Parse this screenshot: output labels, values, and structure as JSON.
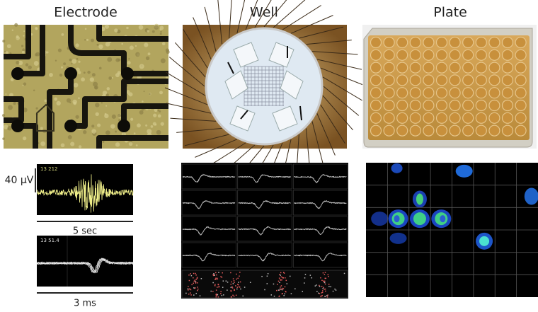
{
  "columns": [
    {
      "title": "Electrode"
    },
    {
      "title": "Well"
    },
    {
      "title": "Plate"
    }
  ],
  "electrode_plots": {
    "amplitude_scale": "40 µV",
    "trace_label": "13 212",
    "trace_time_scale": "5 sec",
    "waveform_label": "13 51.4",
    "waveform_time_scale": "3 ms"
  }
}
